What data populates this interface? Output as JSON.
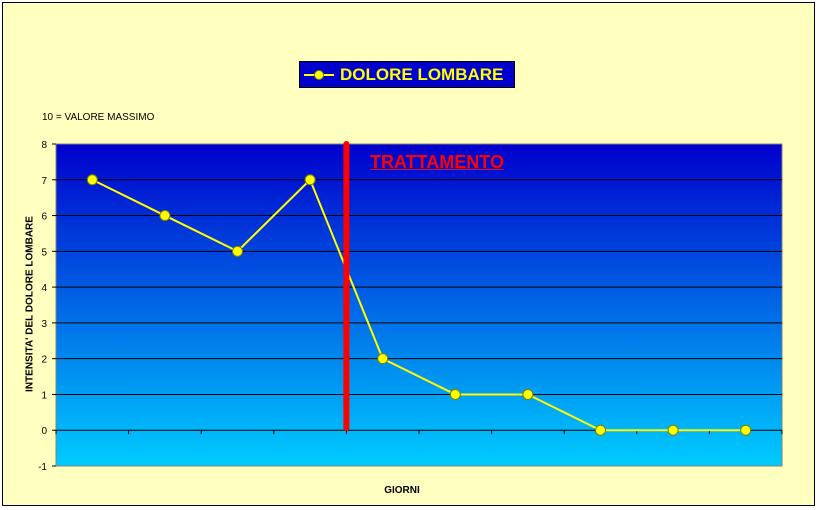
{
  "chart_data": {
    "type": "line",
    "title": "",
    "xlabel": "GIORNI",
    "ylabel": "INTENSITA' DEL DOLORE LOMBARE",
    "note": "10 = VALORE MASSIMO",
    "ylim": [
      -1,
      8
    ],
    "yticks": [
      "-1",
      "0",
      "1",
      "2",
      "3",
      "4",
      "5",
      "6",
      "7",
      "8"
    ],
    "grid": true,
    "legend_position": "top-center",
    "series": [
      {
        "name": "DOLORE LOMBARE",
        "values": [
          7,
          6,
          5,
          7,
          2,
          1,
          1,
          0,
          0,
          0
        ]
      }
    ],
    "annotation": {
      "text": "TRATTAMENTO",
      "between_points": [
        4,
        5
      ]
    },
    "colors": {
      "line": "#ffff00",
      "marker": "#ffff00",
      "treatment_line": "#ff0000",
      "annotation_text": "#ff0000",
      "plot_bg_top": "#0000cc",
      "plot_bg_bottom": "#00ccff",
      "chart_bg": "#ffffc0",
      "legend_bg": "#0000cc",
      "legend_text": "#ffff00"
    }
  }
}
